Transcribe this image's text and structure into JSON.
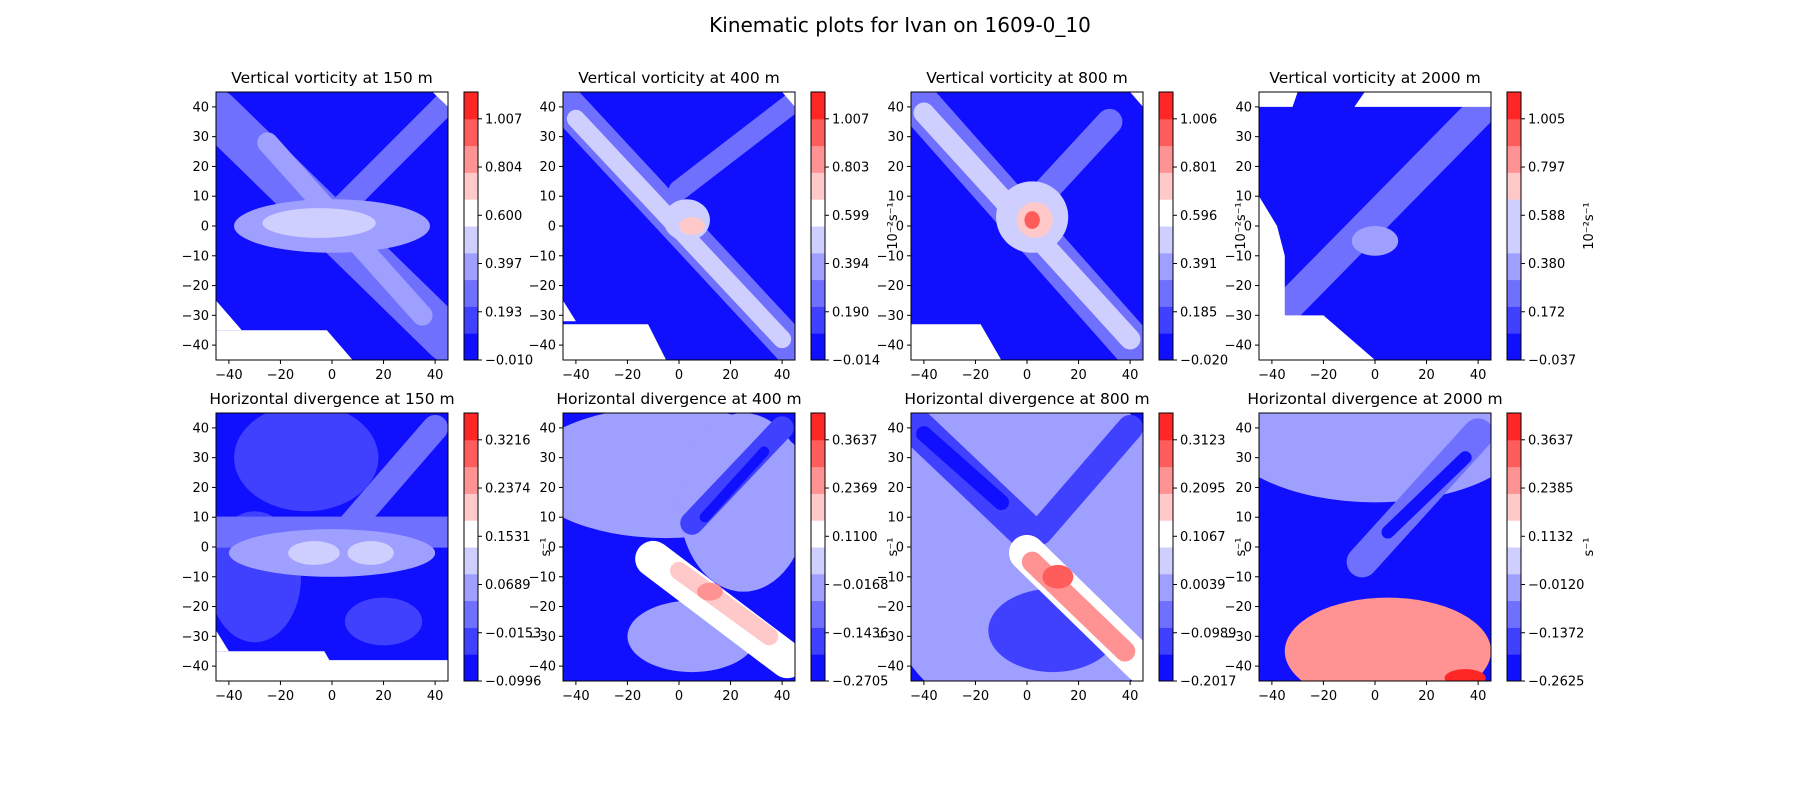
{
  "figure": {
    "suptitle": "Kinematic plots for Ivan on 1609-0_10"
  },
  "colors": {
    "deep_blue": "#1010ff",
    "white": "#ffffff",
    "deep_red": "#ff1010"
  },
  "chart_data": [
    {
      "type": "heatmap",
      "subtype": "filled-contour",
      "title": "Vertical vorticity at 150 m",
      "field": "vorticity",
      "xlim": [
        -45,
        45
      ],
      "ylim": [
        -45,
        45
      ],
      "xticks": [
        "−40",
        "−20",
        "0",
        "20",
        "40"
      ],
      "yticks": [
        "40",
        "30",
        "20",
        "10",
        "0",
        "−10",
        "−20",
        "−30",
        "−40"
      ],
      "colorbar": {
        "ticks": [
          "1.007",
          "0.804",
          "0.600",
          "0.397",
          "0.193",
          "−0.010"
        ],
        "label": "",
        "min": -0.01,
        "max": 1.11,
        "white_band": 0.6
      },
      "features": [
        {
          "shape": "diag",
          "x1": -45,
          "y1": 38,
          "x2": 45,
          "y2": -38,
          "w": 18,
          "v": 0.28
        },
        {
          "shape": "diag",
          "x1": -25,
          "y1": 28,
          "x2": 35,
          "y2": -30,
          "w": 8,
          "v": 0.45
        },
        {
          "shape": "diag",
          "x1": 0,
          "y1": 3,
          "x2": 45,
          "y2": 42,
          "w": 9,
          "v": 0.3
        },
        {
          "shape": "blob",
          "x": 0,
          "y": 0,
          "rx": 38,
          "ry": 9,
          "v": 0.42
        },
        {
          "shape": "blob",
          "x": -5,
          "y": 1,
          "rx": 22,
          "ry": 5,
          "v": 0.55
        },
        {
          "shape": "blob",
          "x": 0,
          "y": 1,
          "rx": 8,
          "ry": 3,
          "v": 0.6
        }
      ],
      "masks": [
        [
          [
            -45,
            -25
          ],
          [
            -35,
            -35
          ],
          [
            -45,
            -35
          ]
        ],
        [
          [
            -45,
            -35
          ],
          [
            -2,
            -35
          ],
          [
            8,
            -45
          ],
          [
            -45,
            -45
          ]
        ],
        [
          [
            39,
            45
          ],
          [
            45,
            45
          ],
          [
            45,
            40
          ]
        ]
      ]
    },
    {
      "type": "heatmap",
      "subtype": "filled-contour",
      "title": "Vertical vorticity at 400 m",
      "field": "vorticity",
      "xlim": [
        -45,
        45
      ],
      "ylim": [
        -45,
        45
      ],
      "xticks": [
        "−40",
        "−20",
        "0",
        "20",
        "40"
      ],
      "yticks": [
        "40",
        "30",
        "20",
        "10",
        "0",
        "−10",
        "−20",
        "−30",
        "−40"
      ],
      "colorbar": {
        "ticks": [
          "1.007",
          "0.803",
          "0.599",
          "0.394",
          "0.190",
          "−0.014"
        ],
        "label": "10⁻²s⁻¹",
        "min": -0.014,
        "max": 1.11,
        "white_band": 0.6
      },
      "features": [
        {
          "shape": "diag",
          "x1": -45,
          "y1": 42,
          "x2": 45,
          "y2": -42,
          "w": 14,
          "v": 0.3
        },
        {
          "shape": "diag",
          "x1": -40,
          "y1": 36,
          "x2": 40,
          "y2": -38,
          "w": 7,
          "v": 0.5
        },
        {
          "shape": "diag",
          "x1": 0,
          "y1": 12,
          "x2": 45,
          "y2": 42,
          "w": 8,
          "v": 0.3
        },
        {
          "shape": "blob",
          "x": 3,
          "y": 2,
          "rx": 9,
          "ry": 7,
          "v": 0.6
        },
        {
          "shape": "blob",
          "x": 5,
          "y": 0,
          "rx": 5,
          "ry": 3,
          "v": 0.72
        }
      ],
      "masks": [
        [
          [
            -45,
            -25
          ],
          [
            -40,
            -32
          ],
          [
            -45,
            -32
          ]
        ],
        [
          [
            -45,
            -33
          ],
          [
            -12,
            -33
          ],
          [
            -5,
            -45
          ],
          [
            -45,
            -45
          ]
        ],
        [
          [
            40,
            45
          ],
          [
            45,
            45
          ],
          [
            45,
            40
          ]
        ]
      ]
    },
    {
      "type": "heatmap",
      "subtype": "filled-contour",
      "title": "Vertical vorticity at 800 m",
      "field": "vorticity",
      "xlim": [
        -45,
        45
      ],
      "ylim": [
        -45,
        45
      ],
      "xticks": [
        "−40",
        "−20",
        "0",
        "20",
        "40"
      ],
      "yticks": [
        "40",
        "30",
        "20",
        "10",
        "0",
        "−10",
        "−20",
        "−30",
        "−40"
      ],
      "colorbar": {
        "ticks": [
          "1.006",
          "0.801",
          "0.596",
          "0.391",
          "0.185",
          "−0.020"
        ],
        "label": "10⁻²s⁻¹",
        "min": -0.02,
        "max": 1.11,
        "white_band": 0.6
      },
      "features": [
        {
          "shape": "diag",
          "x1": -45,
          "y1": 44,
          "x2": 45,
          "y2": -44,
          "w": 16,
          "v": 0.3
        },
        {
          "shape": "diag",
          "x1": -40,
          "y1": 38,
          "x2": 40,
          "y2": -38,
          "w": 8,
          "v": 0.5
        },
        {
          "shape": "diag",
          "x1": 0,
          "y1": 5,
          "x2": 32,
          "y2": 35,
          "w": 10,
          "v": 0.32
        },
        {
          "shape": "blob",
          "x": 2,
          "y": 3,
          "rx": 14,
          "ry": 12,
          "v": 0.6
        },
        {
          "shape": "blob",
          "x": 3,
          "y": 2,
          "rx": 7,
          "ry": 6,
          "v": 0.78
        },
        {
          "shape": "blob",
          "x": 2,
          "y": 2,
          "rx": 3,
          "ry": 3,
          "v": 0.95
        }
      ],
      "masks": [
        [
          [
            -45,
            -33
          ],
          [
            -18,
            -33
          ],
          [
            -10,
            -45
          ],
          [
            -45,
            -45
          ]
        ],
        [
          [
            40,
            45
          ],
          [
            45,
            45
          ],
          [
            45,
            40
          ]
        ]
      ]
    },
    {
      "type": "heatmap",
      "subtype": "filled-contour",
      "title": "Vertical vorticity at 2000 m",
      "field": "vorticity",
      "xlim": [
        -45,
        45
      ],
      "ylim": [
        -45,
        45
      ],
      "xticks": [
        "−40",
        "−20",
        "0",
        "20",
        "40"
      ],
      "yticks": [
        "40",
        "30",
        "20",
        "10",
        "0",
        "−10",
        "−20",
        "−30",
        "−40"
      ],
      "colorbar": {
        "ticks": [
          "1.005",
          "0.797",
          "0.588",
          "0.380",
          "0.172",
          "−0.037"
        ],
        "label": "10⁻²s⁻¹",
        "min": -0.037,
        "max": 1.11,
        "white_band": 0.6
      },
      "features": [
        {
          "shape": "diag",
          "x1": -35,
          "y1": -28,
          "x2": 40,
          "y2": 38,
          "w": 12,
          "v": 0.22
        },
        {
          "shape": "diag",
          "x1": -20,
          "y1": -18,
          "x2": 30,
          "y2": 30,
          "w": 6,
          "v": 0.33
        },
        {
          "shape": "blob",
          "x": 0,
          "y": -5,
          "rx": 9,
          "ry": 5,
          "v": 0.38
        }
      ],
      "masks": [
        [
          [
            -45,
            45
          ],
          [
            -45,
            10
          ],
          [
            -38,
            0
          ],
          [
            -35,
            -10
          ],
          [
            -35,
            -30
          ],
          [
            -20,
            -30
          ],
          [
            0,
            -45
          ],
          [
            -45,
            -45
          ]
        ],
        [
          [
            -45,
            45
          ],
          [
            -45,
            40
          ],
          [
            -32,
            40
          ],
          [
            -30,
            45
          ]
        ],
        [
          [
            -4,
            45
          ],
          [
            -8,
            40
          ],
          [
            45,
            40
          ],
          [
            45,
            45
          ]
        ]
      ]
    },
    {
      "type": "heatmap",
      "subtype": "filled-contour",
      "title": "Horizontal divergence at 150 m",
      "field": "divergence",
      "xlim": [
        -45,
        45
      ],
      "ylim": [
        -45,
        45
      ],
      "xticks": [
        "−40",
        "−20",
        "0",
        "20",
        "40"
      ],
      "yticks": [
        "40",
        "30",
        "20",
        "10",
        "0",
        "−10",
        "−20",
        "−30",
        "−40"
      ],
      "colorbar": {
        "ticks": [
          "0.3216",
          "0.2374",
          "0.1531",
          "0.0689",
          "−0.0153",
          "−0.0996"
        ],
        "label": "s⁻¹",
        "min": -0.0996,
        "max": 0.364,
        "white_band": 0.1531
      },
      "features": [
        {
          "shape": "blob",
          "x": -10,
          "y": 30,
          "rx": 28,
          "ry": 18,
          "v": -0.02
        },
        {
          "shape": "blob",
          "x": -30,
          "y": -10,
          "rx": 18,
          "ry": 22,
          "v": -0.02
        },
        {
          "shape": "diag",
          "x1": -45,
          "y1": 5,
          "x2": 45,
          "y2": 5,
          "w": 12,
          "v": 0.05
        },
        {
          "shape": "diag",
          "x1": 0,
          "y1": 0,
          "x2": 40,
          "y2": 40,
          "w": 10,
          "v": 0.02
        },
        {
          "shape": "blob",
          "x": 0,
          "y": -2,
          "rx": 40,
          "ry": 8,
          "v": 0.09
        },
        {
          "shape": "blob",
          "x": -7,
          "y": -2,
          "rx": 10,
          "ry": 4,
          "v": 0.14
        },
        {
          "shape": "blob",
          "x": 15,
          "y": -2,
          "rx": 9,
          "ry": 4,
          "v": 0.14
        },
        {
          "shape": "blob",
          "x": 20,
          "y": -25,
          "rx": 15,
          "ry": 8,
          "v": 0.0
        }
      ],
      "masks": [
        [
          [
            -45,
            -28
          ],
          [
            -40,
            -35
          ],
          [
            -45,
            -35
          ]
        ],
        [
          [
            -45,
            -35
          ],
          [
            -3,
            -35
          ],
          [
            -1,
            -38
          ],
          [
            45,
            -38
          ],
          [
            45,
            -45
          ],
          [
            -45,
            -45
          ]
        ]
      ]
    },
    {
      "type": "heatmap",
      "subtype": "filled-contour",
      "title": "Horizontal divergence at 400 m",
      "field": "divergence",
      "xlim": [
        -45,
        45
      ],
      "ylim": [
        -45,
        45
      ],
      "xticks": [
        "−40",
        "−20",
        "0",
        "20",
        "40"
      ],
      "yticks": [
        "40",
        "30",
        "20",
        "10",
        "0",
        "−10",
        "−20",
        "−30",
        "−40"
      ],
      "colorbar": {
        "ticks": [
          "0.3637",
          "0.2369",
          "0.1100",
          "−0.0168",
          "−0.1436",
          "−0.2705"
        ],
        "label": "s⁻¹",
        "min": -0.33,
        "max": 0.3637,
        "white_band": 0.02
      },
      "features": [
        {
          "shape": "blob",
          "x": -5,
          "y": 25,
          "rx": 55,
          "ry": 22,
          "v": -0.08
        },
        {
          "shape": "blob",
          "x": 25,
          "y": 15,
          "rx": 25,
          "ry": 30,
          "v": -0.08
        },
        {
          "shape": "blob",
          "x": 5,
          "y": -30,
          "rx": 25,
          "ry": 12,
          "v": -0.12
        },
        {
          "shape": "diag",
          "x1": 5,
          "y1": 8,
          "x2": 40,
          "y2": 40,
          "w": 9,
          "v": -0.2
        },
        {
          "shape": "diag",
          "x1": 10,
          "y1": 10,
          "x2": 33,
          "y2": 32,
          "w": 4,
          "v": -0.28
        },
        {
          "shape": "diag",
          "x1": -10,
          "y1": -4,
          "x2": 42,
          "y2": -38,
          "w": 14,
          "v": 0.07
        },
        {
          "shape": "diag",
          "x1": 0,
          "y1": -8,
          "x2": 35,
          "y2": -30,
          "w": 7,
          "v": 0.15
        },
        {
          "shape": "blob",
          "x": 12,
          "y": -15,
          "rx": 5,
          "ry": 3,
          "v": 0.2
        }
      ],
      "masks": []
    },
    {
      "type": "heatmap",
      "subtype": "filled-contour",
      "title": "Horizontal divergence at 800 m",
      "field": "divergence",
      "xlim": [
        -45,
        45
      ],
      "ylim": [
        -45,
        45
      ],
      "xticks": [
        "−40",
        "−20",
        "0",
        "20",
        "40"
      ],
      "yticks": [
        "40",
        "30",
        "20",
        "10",
        "0",
        "−10",
        "−20",
        "−30",
        "−40"
      ],
      "colorbar": {
        "ticks": [
          "0.3123",
          "0.2095",
          "0.1067",
          "0.0039",
          "−0.0989",
          "−0.2017"
        ],
        "label": "s⁻¹",
        "min": -0.2017,
        "max": 0.364,
        "white_band": 0.055
      },
      "features": [
        {
          "shape": "blob",
          "x": 0,
          "y": 0,
          "rx": 60,
          "ry": 60,
          "v": -0.03
        },
        {
          "shape": "diag",
          "x1": -45,
          "y1": 42,
          "x2": 0,
          "y2": 5,
          "w": 14,
          "v": -0.1
        },
        {
          "shape": "diag",
          "x1": -40,
          "y1": 38,
          "x2": -10,
          "y2": 15,
          "w": 6,
          "v": -0.17
        },
        {
          "shape": "diag",
          "x1": 5,
          "y1": 5,
          "x2": 40,
          "y2": 40,
          "w": 10,
          "v": -0.12
        },
        {
          "shape": "blob",
          "x": 10,
          "y": -28,
          "rx": 25,
          "ry": 14,
          "v": -0.1
        },
        {
          "shape": "diag",
          "x1": 0,
          "y1": -2,
          "x2": 45,
          "y2": -40,
          "w": 14,
          "v": 0.07
        },
        {
          "shape": "diag",
          "x1": 2,
          "y1": -5,
          "x2": 38,
          "y2": -35,
          "w": 8,
          "v": 0.18
        },
        {
          "shape": "blob",
          "x": 12,
          "y": -10,
          "rx": 6,
          "ry": 4,
          "v": 0.26
        }
      ],
      "masks": []
    },
    {
      "type": "heatmap",
      "subtype": "filled-contour",
      "title": "Horizontal divergence at 2000 m",
      "field": "divergence",
      "xlim": [
        -45,
        45
      ],
      "ylim": [
        -45,
        45
      ],
      "xticks": [
        "−40",
        "−20",
        "0",
        "20",
        "40"
      ],
      "yticks": [
        "40",
        "30",
        "20",
        "10",
        "0",
        "−10",
        "−20",
        "−30",
        "−40"
      ],
      "colorbar": {
        "ticks": [
          "0.3637",
          "0.2385",
          "0.1132",
          "−0.0120",
          "−0.1372",
          "−0.2625"
        ],
        "label": "s⁻¹",
        "min": -0.3,
        "max": 0.3637,
        "white_band": 0.04
      },
      "features": [
        {
          "shape": "blob",
          "x": 0,
          "y": 40,
          "rx": 60,
          "ry": 25,
          "v": -0.08
        },
        {
          "shape": "diag",
          "x1": -5,
          "y1": -5,
          "x2": 40,
          "y2": 38,
          "w": 12,
          "v": -0.15
        },
        {
          "shape": "diag",
          "x1": 5,
          "y1": 5,
          "x2": 35,
          "y2": 30,
          "w": 5,
          "v": -0.25
        },
        {
          "shape": "blob",
          "x": 5,
          "y": -35,
          "rx": 40,
          "ry": 18,
          "v": 0.2
        },
        {
          "shape": "blob",
          "x": 35,
          "y": -44,
          "rx": 8,
          "ry": 3,
          "v": 0.3
        }
      ],
      "masks": [
        [
          [
            -45,
            -29
          ],
          [
            -30,
            -29
          ],
          [
            -45,
            -29
          ]
        ]
      ]
    }
  ]
}
